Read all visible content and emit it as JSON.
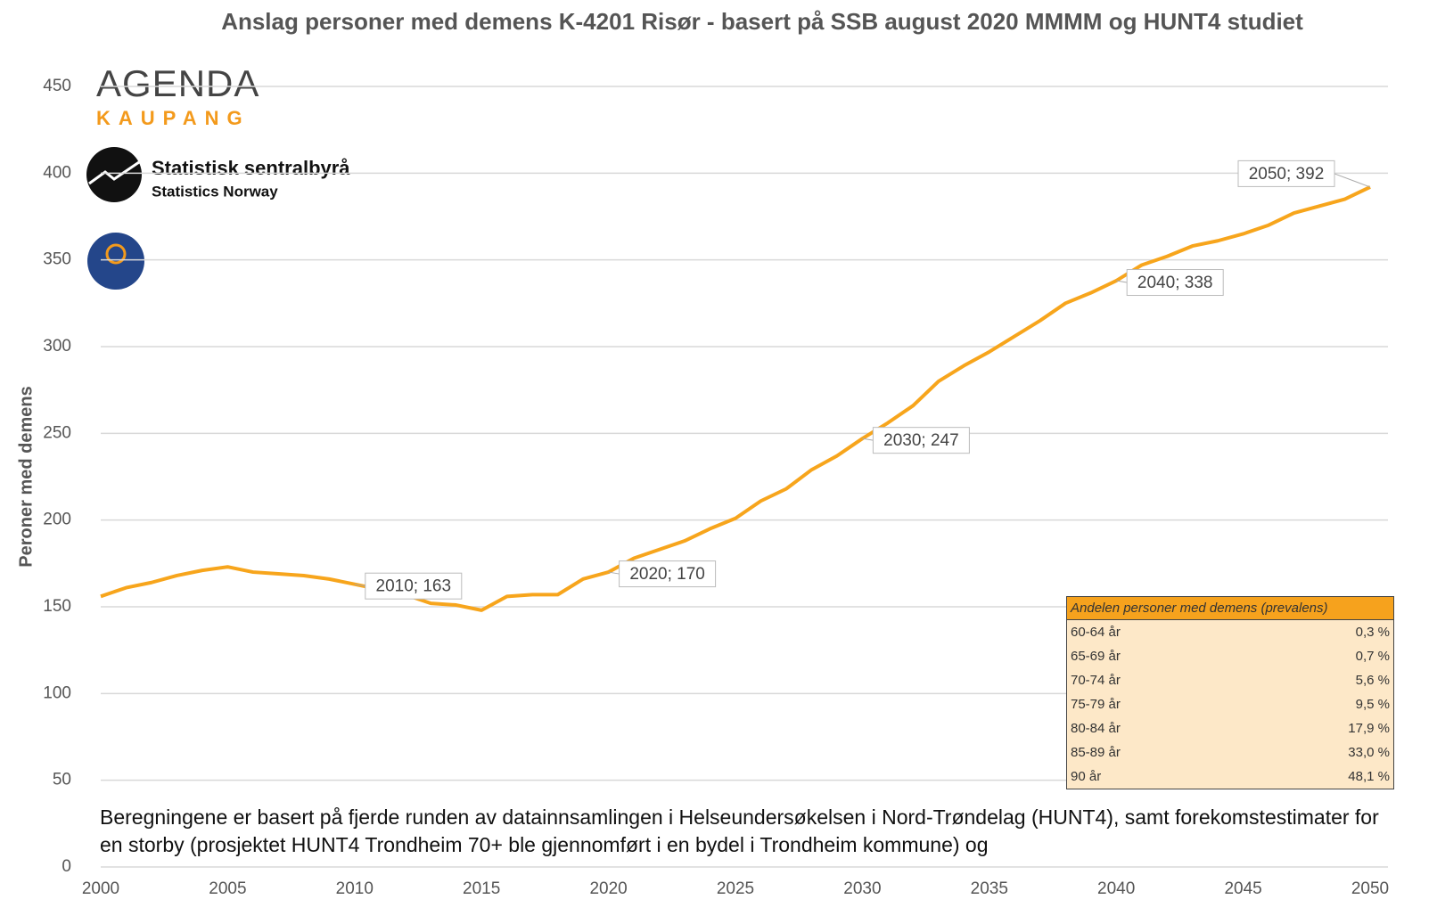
{
  "chart_data": {
    "type": "line",
    "title": "Anslag personer med demens K-4201 Risør - basert på SSB august 2020 MMMM og HUNT4 studiet",
    "y_label": "Peroner med demens",
    "x": [
      2000,
      2001,
      2002,
      2003,
      2004,
      2005,
      2006,
      2007,
      2008,
      2009,
      2010,
      2011,
      2012,
      2013,
      2014,
      2015,
      2016,
      2017,
      2018,
      2019,
      2020,
      2021,
      2022,
      2023,
      2024,
      2025,
      2026,
      2027,
      2028,
      2029,
      2030,
      2031,
      2032,
      2033,
      2034,
      2035,
      2036,
      2037,
      2038,
      2039,
      2040,
      2041,
      2042,
      2043,
      2044,
      2045,
      2046,
      2047,
      2048,
      2049,
      2050
    ],
    "series": [
      {
        "name": "Personer med demens",
        "color": "#f7a51c",
        "values": [
          156,
          161,
          164,
          168,
          171,
          173,
          170,
          169,
          168,
          166,
          163,
          160,
          157,
          152,
          151,
          148,
          156,
          157,
          157,
          166,
          170,
          178,
          183,
          188,
          195,
          201,
          211,
          218,
          229,
          237,
          247,
          256,
          266,
          280,
          289,
          297,
          306,
          315,
          325,
          331,
          338,
          347,
          352,
          358,
          361,
          365,
          370,
          377,
          381,
          385,
          392
        ],
        "value_labels": [
          null,
          null,
          null,
          null,
          null,
          null,
          null,
          null,
          null,
          null,
          "2010; 163",
          null,
          null,
          null,
          null,
          null,
          null,
          null,
          null,
          null,
          "2020; 170",
          null,
          null,
          null,
          null,
          null,
          null,
          null,
          null,
          null,
          "2030; 247",
          null,
          null,
          null,
          null,
          null,
          null,
          null,
          null,
          null,
          "2040; 338",
          null,
          null,
          null,
          null,
          null,
          null,
          null,
          null,
          null,
          "2050; 392"
        ]
      }
    ],
    "xlim": [
      2000,
      2050
    ],
    "xticks": [
      2000,
      2005,
      2010,
      2015,
      2020,
      2025,
      2030,
      2035,
      2040,
      2045,
      2050
    ],
    "ylim": [
      0,
      450
    ],
    "yticks": [
      0,
      50,
      100,
      150,
      200,
      250,
      300,
      350,
      400,
      450
    ],
    "grid": true,
    "logos": {
      "agenda": "AGENDA",
      "kaupang": "KAUPANG",
      "ssb": "Statistisk sentralbyrå",
      "ssb_en": "Statistics Norway"
    },
    "prevalence_table": {
      "title": "Andelen personer med demens (prevalens)",
      "rows": [
        [
          "60-64 år",
          "0,3 %"
        ],
        [
          "65-69 år",
          "0,7 %"
        ],
        [
          "70-74 år",
          "5,6 %"
        ],
        [
          "75-79 år",
          "9,5 %"
        ],
        [
          "80-84 år",
          "17,9 %"
        ],
        [
          "85-89 år",
          "33,0 %"
        ],
        [
          "90 år",
          "48,1 %"
        ]
      ]
    },
    "footnote": "Beregningene er basert på fjerde runden av datainnsamlingen i Helseundersøkelsen i Nord-Trøndelag (HUNT4), samt forekomstestimater for en storby (prosjektet HUNT4 Trondheim 70+ ble gjennomført i en bydel i Trondheim kommune) og"
  }
}
